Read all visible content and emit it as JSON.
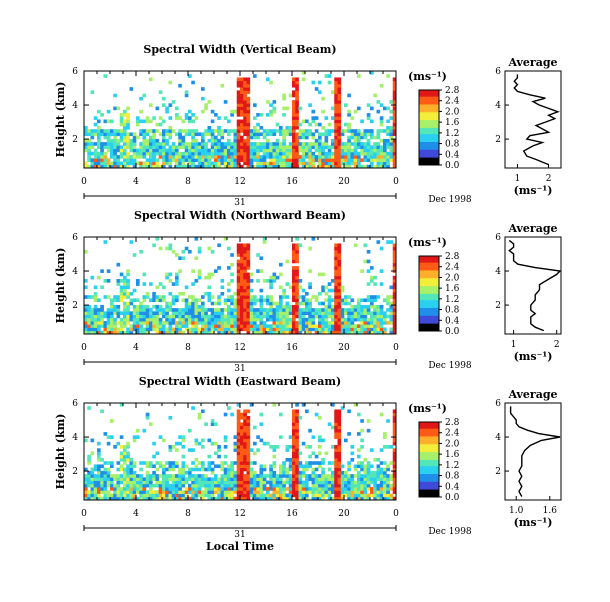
{
  "chart_data": [
    {
      "type": "heatmap",
      "title": "Spectral Width (Vertical Beam)",
      "ylabel": "Height (km)",
      "x_ticks": [
        "0",
        "4",
        "8",
        "12",
        "16",
        "20",
        "0"
      ],
      "y_ticks": [
        "6",
        "4",
        "2"
      ],
      "date_label": "31",
      "month_label": "Dec 1998",
      "colorbar": {
        "unit": "(ms⁻¹)",
        "ticks": [
          "0.0",
          "0.4",
          "0.8",
          "1.2",
          "1.6",
          "2.0",
          "2.4",
          "2.8"
        ]
      },
      "average": {
        "title": "Average",
        "xlabel": "(ms⁻¹)",
        "x_ticks": [
          "1",
          "2"
        ],
        "y_ticks": [
          "6",
          "4",
          "2"
        ],
        "xlim": [
          0.6,
          2.4
        ],
        "ylim": [
          0.3,
          6.0
        ],
        "profile": {
          "h": [
            0.5,
            0.8,
            1.0,
            1.3,
            1.6,
            1.8,
            2.0,
            2.2,
            2.4,
            2.6,
            2.8,
            3.0,
            3.2,
            3.4,
            3.6,
            3.8,
            4.0,
            4.2,
            4.4,
            4.6,
            4.8,
            5.0,
            5.2,
            5.4,
            5.6,
            5.8
          ],
          "w": [
            2.0,
            1.6,
            1.3,
            1.2,
            1.5,
            1.8,
            1.3,
            1.4,
            2.0,
            1.8,
            1.6,
            1.9,
            2.2,
            2.0,
            2.3,
            2.0,
            1.7,
            1.5,
            1.9,
            1.4,
            1.0,
            0.9,
            1.0,
            0.9,
            1.0,
            1.0
          ]
        }
      }
    },
    {
      "type": "heatmap",
      "title": "Spectral Width (Northward Beam)",
      "ylabel": "Height (km)",
      "x_ticks": [
        "0",
        "4",
        "8",
        "12",
        "16",
        "20",
        "0"
      ],
      "y_ticks": [
        "6",
        "4",
        "2"
      ],
      "date_label": "31",
      "month_label": "Dec 1998",
      "colorbar": {
        "unit": "(ms⁻¹)",
        "ticks": [
          "0.0",
          "0.4",
          "0.8",
          "1.2",
          "1.6",
          "2.0",
          "2.4",
          "2.8"
        ]
      },
      "average": {
        "title": "Average",
        "xlabel": "(ms⁻¹)",
        "x_ticks": [
          "1",
          "2"
        ],
        "y_ticks": [
          "6",
          "4",
          "2"
        ],
        "xlim": [
          0.8,
          2.1
        ],
        "ylim": [
          0.3,
          6.0
        ],
        "profile": {
          "h": [
            0.5,
            0.7,
            0.9,
            1.1,
            1.3,
            1.5,
            1.7,
            2.0,
            2.3,
            2.6,
            2.9,
            3.2,
            3.5,
            3.8,
            4.0,
            4.2,
            4.4,
            4.6,
            4.8,
            5.0,
            5.2,
            5.4,
            5.6,
            5.8
          ],
          "w": [
            1.7,
            1.5,
            1.4,
            1.4,
            1.4,
            1.5,
            1.4,
            1.4,
            1.5,
            1.5,
            1.6,
            1.6,
            1.8,
            2.0,
            2.1,
            1.5,
            1.1,
            1.0,
            1.0,
            1.0,
            0.9,
            1.0,
            1.0,
            0.9
          ]
        }
      }
    },
    {
      "type": "heatmap",
      "title": "Spectral Width (Eastward Beam)",
      "ylabel": "Height (km)",
      "x_ticks": [
        "0",
        "4",
        "8",
        "12",
        "16",
        "20",
        "0"
      ],
      "y_ticks": [
        "6",
        "4",
        "2"
      ],
      "date_label": "31",
      "month_label": "Dec 1998",
      "xlabel": "Local Time",
      "colorbar": {
        "unit": "(ms⁻¹)",
        "ticks": [
          "0.0",
          "0.4",
          "0.8",
          "1.2",
          "1.6",
          "2.0",
          "2.4",
          "2.8"
        ]
      },
      "average": {
        "title": "Average",
        "xlabel": "(ms⁻¹)",
        "x_ticks": [
          "1.0",
          "1.6"
        ],
        "y_ticks": [
          "6",
          "4",
          "2"
        ],
        "xlim": [
          0.8,
          1.8
        ],
        "ylim": [
          0.3,
          6.0
        ],
        "profile": {
          "h": [
            0.5,
            0.8,
            1.1,
            1.4,
            1.7,
            2.0,
            2.3,
            2.6,
            2.9,
            3.2,
            3.5,
            3.8,
            4.0,
            4.2,
            4.4,
            4.6,
            4.8,
            5.0,
            5.2,
            5.4,
            5.6,
            5.8
          ],
          "w": [
            1.1,
            1.05,
            1.1,
            1.05,
            1.1,
            1.05,
            1.1,
            1.1,
            1.1,
            1.15,
            1.25,
            1.45,
            1.8,
            1.4,
            1.2,
            1.05,
            1.0,
            1.0,
            0.95,
            0.9,
            0.9,
            0.9
          ]
        }
      }
    }
  ]
}
